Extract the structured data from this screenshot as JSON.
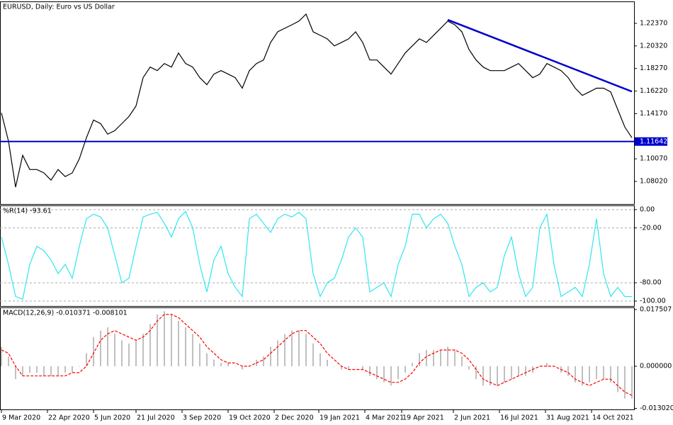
{
  "chart_data": [
    {
      "type": "line",
      "title": "EURUSD, Daily:  Euro vs US Dollar",
      "color": "#000000",
      "values": [
        1.1424,
        1.1167,
        1.075,
        1.1039,
        1.091,
        1.091,
        1.0879,
        1.0814,
        1.091,
        1.0846,
        1.0879,
        1.1007,
        1.1199,
        1.1359,
        1.1327,
        1.1231,
        1.1263,
        1.1327,
        1.1391,
        1.1487,
        1.1744,
        1.184,
        1.1808,
        1.1872,
        1.184,
        1.1968,
        1.1872,
        1.184,
        1.1744,
        1.168,
        1.1776,
        1.1808,
        1.1776,
        1.1744,
        1.1648,
        1.1808,
        1.1872,
        1.1904,
        1.2064,
        1.216,
        1.2192,
        1.2224,
        1.2257,
        1.2321,
        1.216,
        1.2128,
        1.2096,
        1.2032,
        1.2064,
        1.2096,
        1.216,
        1.2064,
        1.1904,
        1.1904,
        1.184,
        1.1776,
        1.1872,
        1.1968,
        1.2032,
        1.2096,
        1.2064,
        1.2128,
        1.2192,
        1.2257,
        1.2224,
        1.216,
        1.2,
        1.1904,
        1.184,
        1.1808,
        1.1808,
        1.1808,
        1.184,
        1.1872,
        1.1808,
        1.1744,
        1.1776,
        1.1872,
        1.184,
        1.1808,
        1.1744,
        1.1648,
        1.1583,
        1.1615,
        1.1648,
        1.1648,
        1.1615,
        1.1455,
        1.1295,
        1.1199
      ],
      "ylim": [
        1.0597,
        1.2436
      ],
      "yticks": [
        {
          "value": 1.0802,
          "label": "1.08020"
        },
        {
          "value": 1.1007,
          "label": "1.10070"
        },
        {
          "value": 1.1417,
          "label": "1.14170"
        },
        {
          "value": 1.1622,
          "label": "1.16220"
        },
        {
          "value": 1.1827,
          "label": "1.18270"
        },
        {
          "value": 1.2032,
          "label": "1.20320"
        },
        {
          "value": 1.2237,
          "label": "1.22370"
        }
      ],
      "xticks": [
        {
          "value": 0,
          "label": "9 Mar 2020"
        },
        {
          "value": 6.5,
          "label": "22 Apr 2020"
        },
        {
          "value": 13,
          "label": "5 Jun 2020"
        },
        {
          "value": 19,
          "label": "21 Jul 2020"
        },
        {
          "value": 25.5,
          "label": "3 Sep 2020"
        },
        {
          "value": 32,
          "label": "19 Oct 2020"
        },
        {
          "value": 38.5,
          "label": "2 Dec 2020"
        },
        {
          "value": 44.8,
          "label": "19 Jan 2021"
        },
        {
          "value": 51.3,
          "label": "4 Mar 2021"
        },
        {
          "value": 56.5,
          "label": "19 Apr 2021"
        },
        {
          "value": 63.8,
          "label": "2 Jun 2021"
        },
        {
          "value": 70.3,
          "label": "16 Jul 2021"
        },
        {
          "value": 76.8,
          "label": "31 Aug 2021"
        },
        {
          "value": 83.3,
          "label": "14 Oct 2021"
        }
      ],
      "last_price": 1.11642,
      "line_color": "#0000cd",
      "trendline": {
        "from": [
          63,
          1.2269
        ],
        "to": [
          89,
          1.1618
        ]
      }
    },
    {
      "type": "line",
      "title": "%R(14) -93.61",
      "color": "#2ee6f0",
      "values": [
        -30,
        -60,
        -95,
        -98,
        -60,
        -40,
        -45,
        -55,
        -70,
        -60,
        -75,
        -40,
        -10,
        -5,
        -8,
        -20,
        -50,
        -80,
        -75,
        -40,
        -8,
        -5,
        -3,
        -15,
        -30,
        -10,
        -2,
        -20,
        -60,
        -90,
        -55,
        -40,
        -70,
        -85,
        -95,
        -10,
        -5,
        -15,
        -25,
        -10,
        -5,
        -8,
        -3,
        -10,
        -70,
        -95,
        -80,
        -75,
        -55,
        -30,
        -20,
        -30,
        -90,
        -85,
        -80,
        -95,
        -60,
        -40,
        -5,
        -5,
        -20,
        -10,
        -5,
        -15,
        -40,
        -60,
        -95,
        -85,
        -80,
        -90,
        -85,
        -50,
        -30,
        -70,
        -95,
        -85,
        -20,
        -5,
        -60,
        -95,
        -90,
        -85,
        -95,
        -60,
        -10,
        -70,
        -95,
        -85,
        -95,
        -95
      ],
      "ylim": [
        -105.4,
        4.6
      ],
      "yticks": [
        {
          "value": 0,
          "label": "0.00"
        },
        {
          "value": -20,
          "label": "-20.00"
        },
        {
          "value": -80,
          "label": "-80.00"
        },
        {
          "value": -100,
          "label": "-100.00"
        }
      ],
      "grid": true
    },
    {
      "type": "combo",
      "title": "MACD(12,26,9) -0.010371 -0.008101",
      "series": [
        {
          "kind": "bar",
          "color": "#c0c0c0",
          "values": [
            0.006,
            0.003,
            -0.004,
            -0.003,
            -0.002,
            -0.002,
            -0.003,
            -0.003,
            -0.003,
            -0.002,
            -0.002,
            0.0,
            0.004,
            0.009,
            0.011,
            0.012,
            0.01,
            0.008,
            0.007,
            0.008,
            0.01,
            0.013,
            0.016,
            0.017,
            0.016,
            0.014,
            0.012,
            0.01,
            0.007,
            0.004,
            0.002,
            0.001,
            0.001,
            0.0,
            -0.001,
            0.0,
            0.002,
            0.003,
            0.006,
            0.008,
            0.01,
            0.011,
            0.011,
            0.01,
            0.007,
            0.004,
            0.002,
            0.0,
            -0.001,
            -0.001,
            0.0,
            -0.001,
            -0.003,
            -0.004,
            -0.005,
            -0.006,
            -0.004,
            -0.002,
            0.001,
            0.004,
            0.005,
            0.005,
            0.005,
            0.006,
            0.005,
            0.003,
            -0.001,
            -0.004,
            -0.006,
            -0.006,
            -0.006,
            -0.005,
            -0.004,
            -0.003,
            -0.003,
            -0.002,
            0.0,
            0.001,
            0.0,
            -0.002,
            -0.003,
            -0.005,
            -0.006,
            -0.005,
            -0.004,
            -0.004,
            -0.005,
            -0.008,
            -0.01,
            -0.01
          ]
        },
        {
          "kind": "line",
          "color": "#ff0000",
          "values": [
            0.005,
            0.004,
            0.0,
            -0.003,
            -0.003,
            -0.003,
            -0.003,
            -0.003,
            -0.003,
            -0.003,
            -0.002,
            -0.002,
            0.0,
            0.004,
            0.008,
            0.01,
            0.011,
            0.01,
            0.009,
            0.008,
            0.009,
            0.011,
            0.014,
            0.016,
            0.016,
            0.015,
            0.013,
            0.011,
            0.009,
            0.006,
            0.004,
            0.002,
            0.001,
            0.001,
            0.0,
            0.0,
            0.001,
            0.002,
            0.004,
            0.006,
            0.008,
            0.01,
            0.011,
            0.011,
            0.009,
            0.007,
            0.004,
            0.002,
            0.0,
            -0.001,
            -0.001,
            -0.001,
            -0.002,
            -0.003,
            -0.004,
            -0.005,
            -0.005,
            -0.004,
            -0.002,
            0.001,
            0.003,
            0.004,
            0.005,
            0.005,
            0.005,
            0.004,
            0.002,
            -0.001,
            -0.004,
            -0.005,
            -0.006,
            -0.005,
            -0.004,
            -0.003,
            -0.002,
            -0.001,
            0.0,
            0.0,
            0.0,
            -0.001,
            -0.002,
            -0.004,
            -0.005,
            -0.006,
            -0.005,
            -0.004,
            -0.004,
            -0.006,
            -0.008,
            -0.009
          ]
        }
      ],
      "ylim": [
        -0.01335,
        0.01816
      ],
      "yticks": [
        0.017507,
        {
          "value": 0,
          "label": "0.000000"
        },
        {
          "value": -0.01302,
          "label": "-0.013020"
        }
      ]
    }
  ]
}
